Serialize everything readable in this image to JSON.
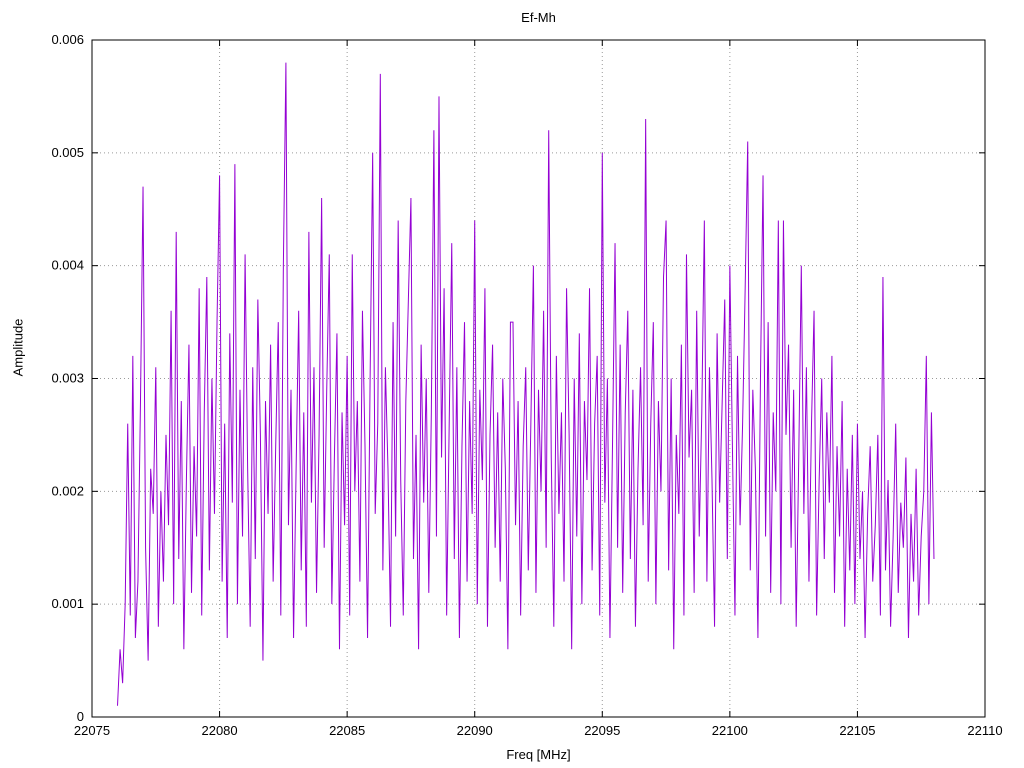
{
  "chart_data": {
    "type": "line",
    "title": "Ef-Mh",
    "xlabel": "Freq [MHz]",
    "ylabel": "Amplitude",
    "xlim": [
      22075,
      22110
    ],
    "ylim": [
      0,
      0.006
    ],
    "x_ticks": [
      22075,
      22080,
      22085,
      22090,
      22095,
      22100,
      22105,
      22110
    ],
    "y_ticks": [
      0,
      0.001,
      0.002,
      0.003,
      0.004,
      0.005,
      0.006
    ],
    "grid": "dotted",
    "legend": "none",
    "line_color": "#9400d3",
    "x_start": 22076.0,
    "x_step": 0.1,
    "y_unit": 0.0001,
    "values": [
      1,
      6,
      3,
      10,
      26,
      9,
      32,
      7,
      12,
      28,
      47,
      15,
      5,
      22,
      18,
      31,
      8,
      20,
      12,
      25,
      17,
      36,
      10,
      43,
      14,
      28,
      6,
      21,
      33,
      11,
      24,
      16,
      38,
      9,
      27,
      39,
      13,
      30,
      18,
      35,
      48,
      12,
      26,
      7,
      34,
      19,
      49,
      10,
      29,
      16,
      41,
      22,
      8,
      31,
      14,
      37,
      25,
      5,
      28,
      18,
      33,
      12,
      24,
      35,
      9,
      40,
      58,
      17,
      29,
      7,
      22,
      36,
      13,
      27,
      8,
      43,
      19,
      31,
      11,
      25,
      46,
      15,
      29,
      41,
      10,
      23,
      34,
      6,
      27,
      17,
      32,
      9,
      41,
      20,
      28,
      12,
      36,
      24,
      7,
      30,
      50,
      18,
      26,
      57,
      13,
      31,
      22,
      8,
      35,
      16,
      44,
      21,
      9,
      28,
      37,
      46,
      14,
      25,
      6,
      33,
      19,
      30,
      11,
      27,
      52,
      16,
      55,
      23,
      38,
      9,
      26,
      42,
      14,
      31,
      7,
      24,
      35,
      12,
      28,
      18,
      44,
      10,
      29,
      21,
      38,
      8,
      25,
      33,
      15,
      27,
      12,
      30,
      22,
      6,
      35,
      35,
      17,
      28,
      9,
      24,
      31,
      13,
      26,
      40,
      11,
      29,
      20,
      36,
      15,
      52,
      23,
      8,
      32,
      18,
      27,
      12,
      38,
      25,
      6,
      30,
      16,
      34,
      10,
      28,
      21,
      38,
      13,
      26,
      32,
      9,
      50,
      19,
      30,
      7,
      24,
      42,
      15,
      33,
      11,
      27,
      36,
      14,
      29,
      8,
      22,
      31,
      17,
      53,
      12,
      26,
      35,
      10,
      28,
      20,
      39,
      44,
      13,
      30,
      6,
      25,
      18,
      33,
      9,
      41,
      23,
      29,
      11,
      36,
      16,
      27,
      44,
      12,
      31,
      21,
      8,
      34,
      19,
      28,
      37,
      14,
      40,
      24,
      9,
      32,
      17,
      26,
      38,
      51,
      13,
      29,
      22,
      7,
      30,
      48,
      16,
      35,
      11,
      27,
      20,
      44,
      10,
      44,
      25,
      33,
      15,
      29,
      8,
      23,
      40,
      18,
      31,
      12,
      26,
      36,
      9,
      21,
      30,
      14,
      27,
      19,
      32,
      11,
      24,
      16,
      28,
      8,
      22,
      13,
      25,
      10,
      26,
      14,
      20,
      7,
      18,
      24,
      12,
      17,
      25,
      9,
      39,
      13,
      21,
      8,
      16,
      26,
      11,
      19,
      15,
      23,
      7,
      18,
      12,
      22,
      9,
      16,
      20,
      32,
      10,
      27,
      14
    ]
  }
}
